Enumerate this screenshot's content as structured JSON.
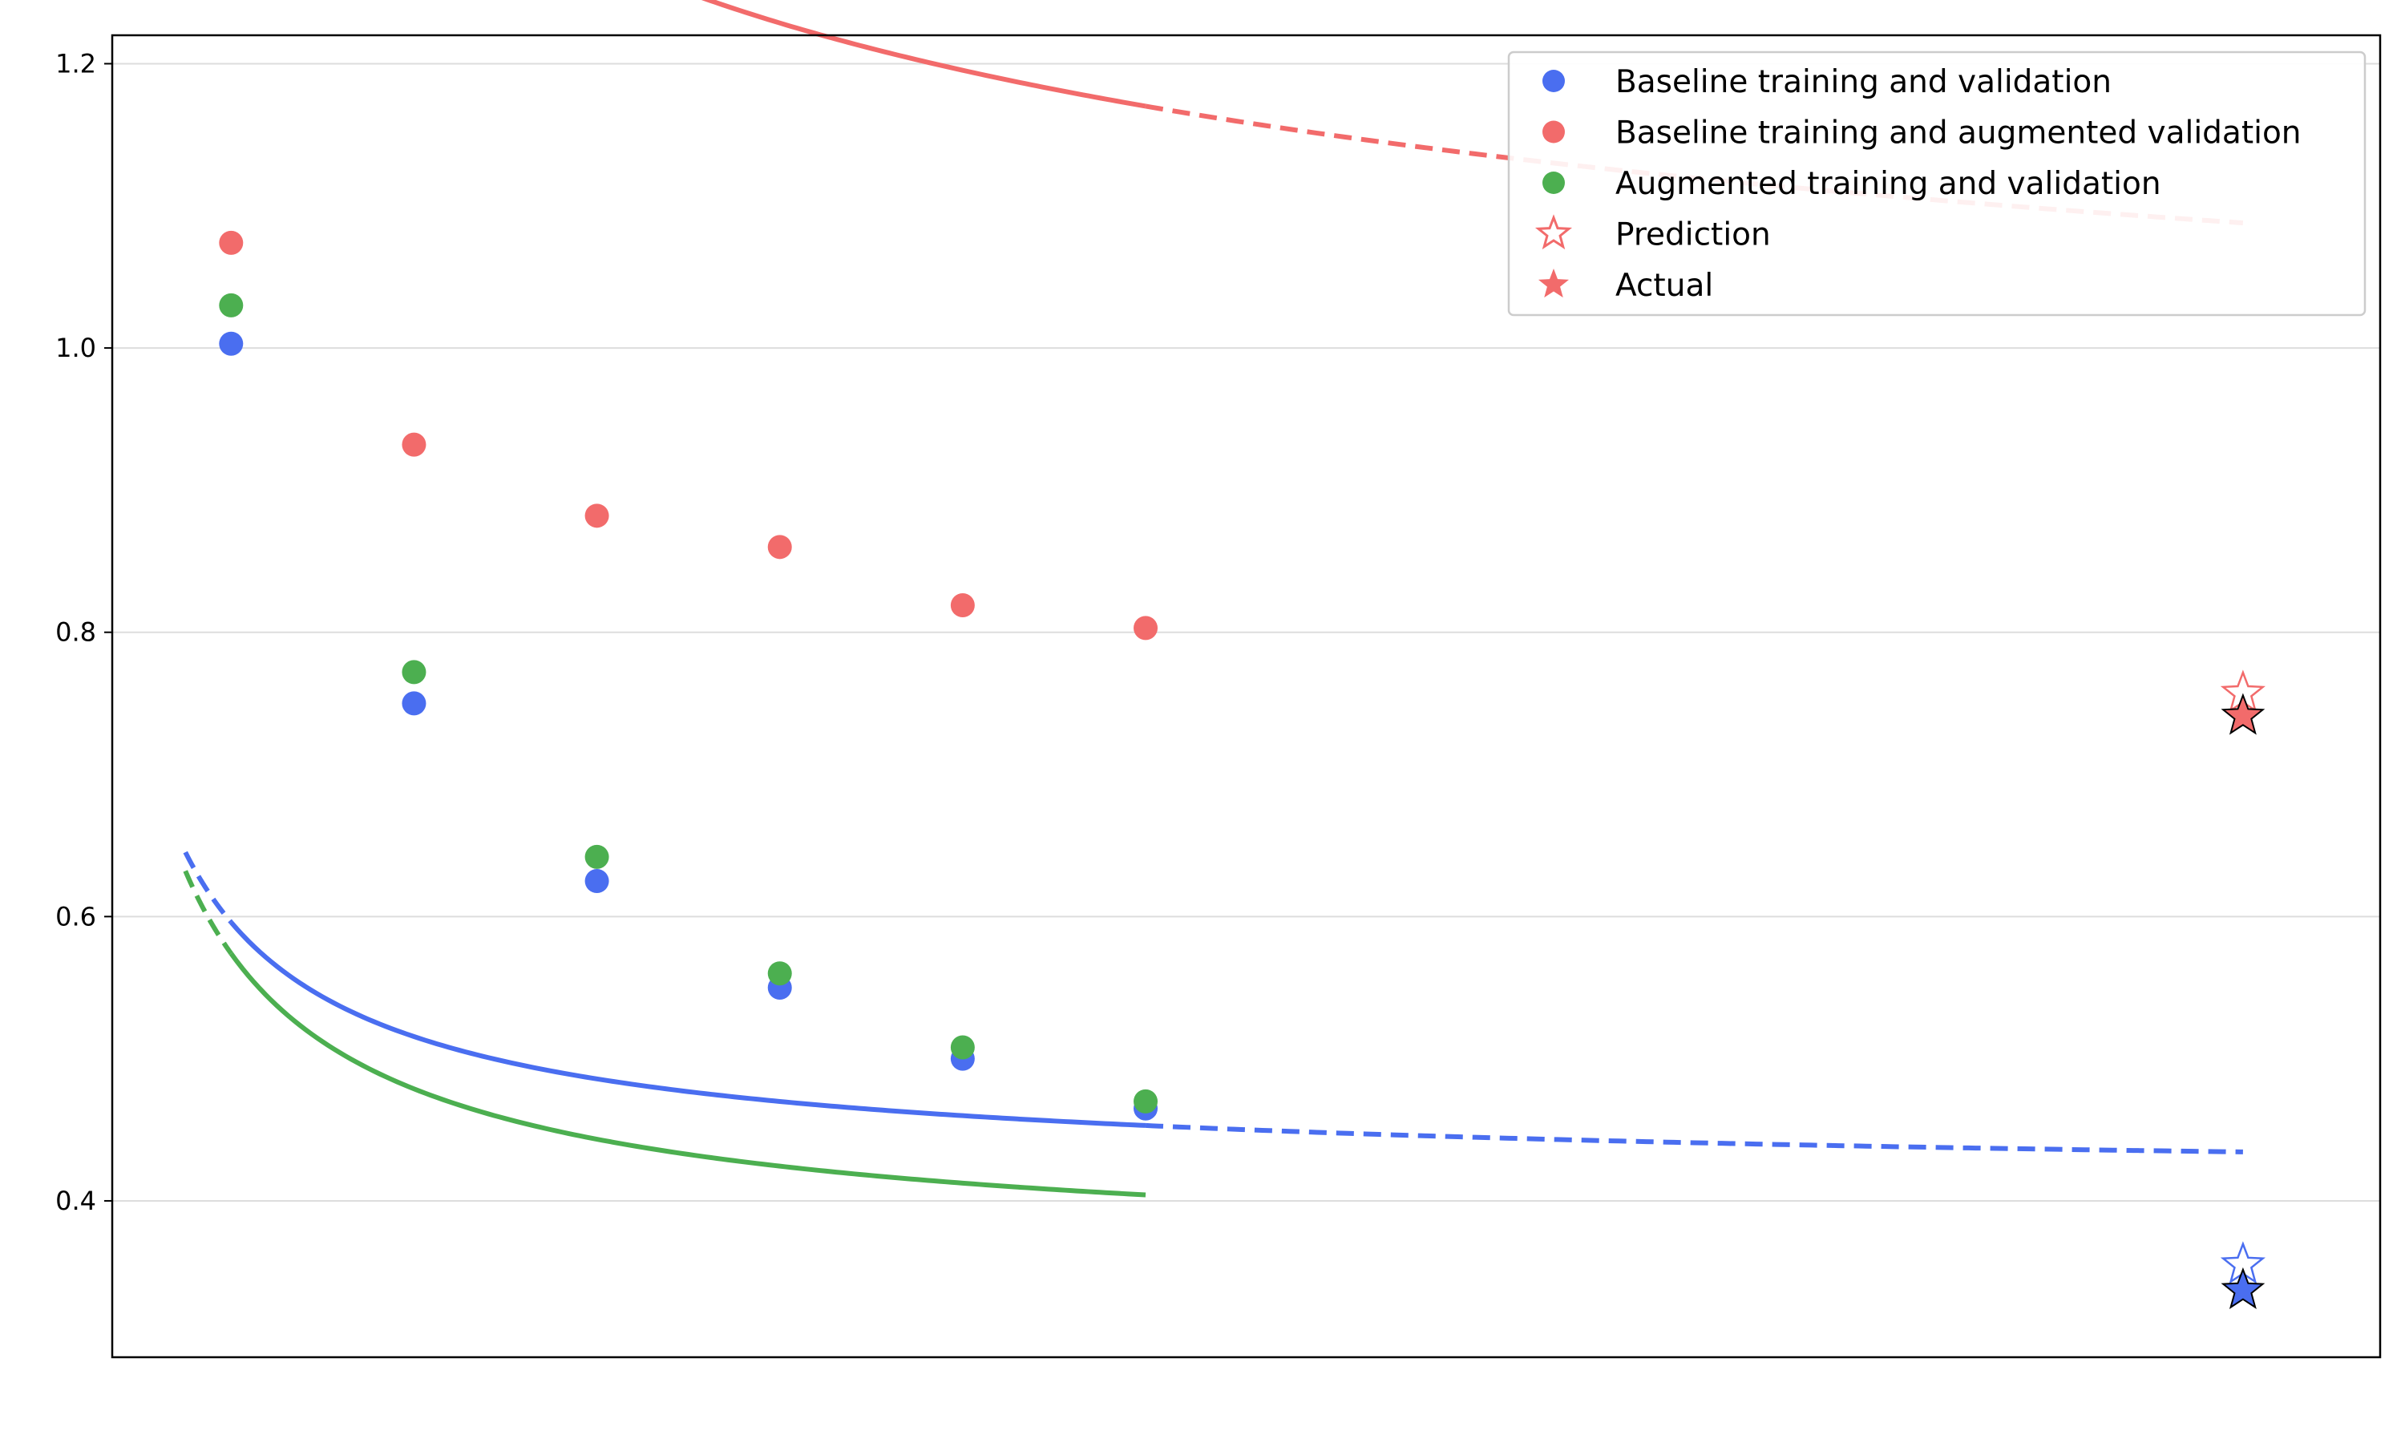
{
  "chart_data": {
    "type": "scatter",
    "title": "",
    "xlabel": "",
    "ylabel": "",
    "xlim": [
      0.35,
      12.75
    ],
    "ylim": [
      0.29,
      1.22
    ],
    "xticks": [],
    "yticks": [
      0.4,
      0.6,
      0.8,
      1.0,
      1.2
    ],
    "ytick_labels": [
      "0.4",
      "0.6",
      "0.8",
      "1.0",
      "1.2"
    ],
    "grid": "horizontal",
    "legend_position": "top-right",
    "series": [
      {
        "name": "Baseline training and validation",
        "color": "#4a6ef0",
        "x": [
          1,
          2,
          3,
          4,
          5,
          6
        ],
        "y": [
          1.003,
          0.75,
          0.625,
          0.55,
          0.5,
          0.465
        ],
        "fit": {
          "a": 0.186,
          "b": 0.817,
          "c": 0.41,
          "x_start": 0.75,
          "x_end": 12
        },
        "prediction": {
          "x": 12,
          "y": 0.355
        },
        "actual": {
          "x": 12,
          "y": 0.337
        }
      },
      {
        "name": "Baseline training and augmented validation",
        "color": "#f26b6b",
        "x": [
          1,
          2,
          3,
          4,
          5,
          6
        ],
        "y": [
          1.074,
          0.932,
          0.882,
          0.86,
          0.819,
          0.803
        ],
        "fit": {
          "a": 0.708,
          "b": 0.362,
          "c": 0.8,
          "x_start": 0.75,
          "x_end": 12
        },
        "prediction": {
          "x": 12,
          "y": 0.757
        },
        "actual": {
          "x": 12,
          "y": 0.741
        }
      },
      {
        "name": "Augmented training and validation",
        "color": "#4caf50",
        "x": [
          1,
          2,
          3,
          4,
          5,
          6
        ],
        "y": [
          1.03,
          0.772,
          0.642,
          0.56,
          0.508,
          0.47
        ],
        "fit": {
          "a": 0.222,
          "b": 0.808,
          "c": 0.352,
          "x_start": 0.75,
          "x_end": 6
        }
      }
    ],
    "legend_entries": [
      {
        "label": "Baseline training and validation",
        "marker": "circle",
        "color": "#4a6ef0"
      },
      {
        "label": "Baseline training and augmented validation",
        "marker": "circle",
        "color": "#f26b6b"
      },
      {
        "label": "Augmented training and validation",
        "marker": "circle",
        "color": "#4caf50"
      },
      {
        "label": "Prediction",
        "marker": "star-open",
        "color": "#f26b6b"
      },
      {
        "label": "Actual",
        "marker": "star-filled",
        "color": "#f26b6b"
      }
    ]
  }
}
